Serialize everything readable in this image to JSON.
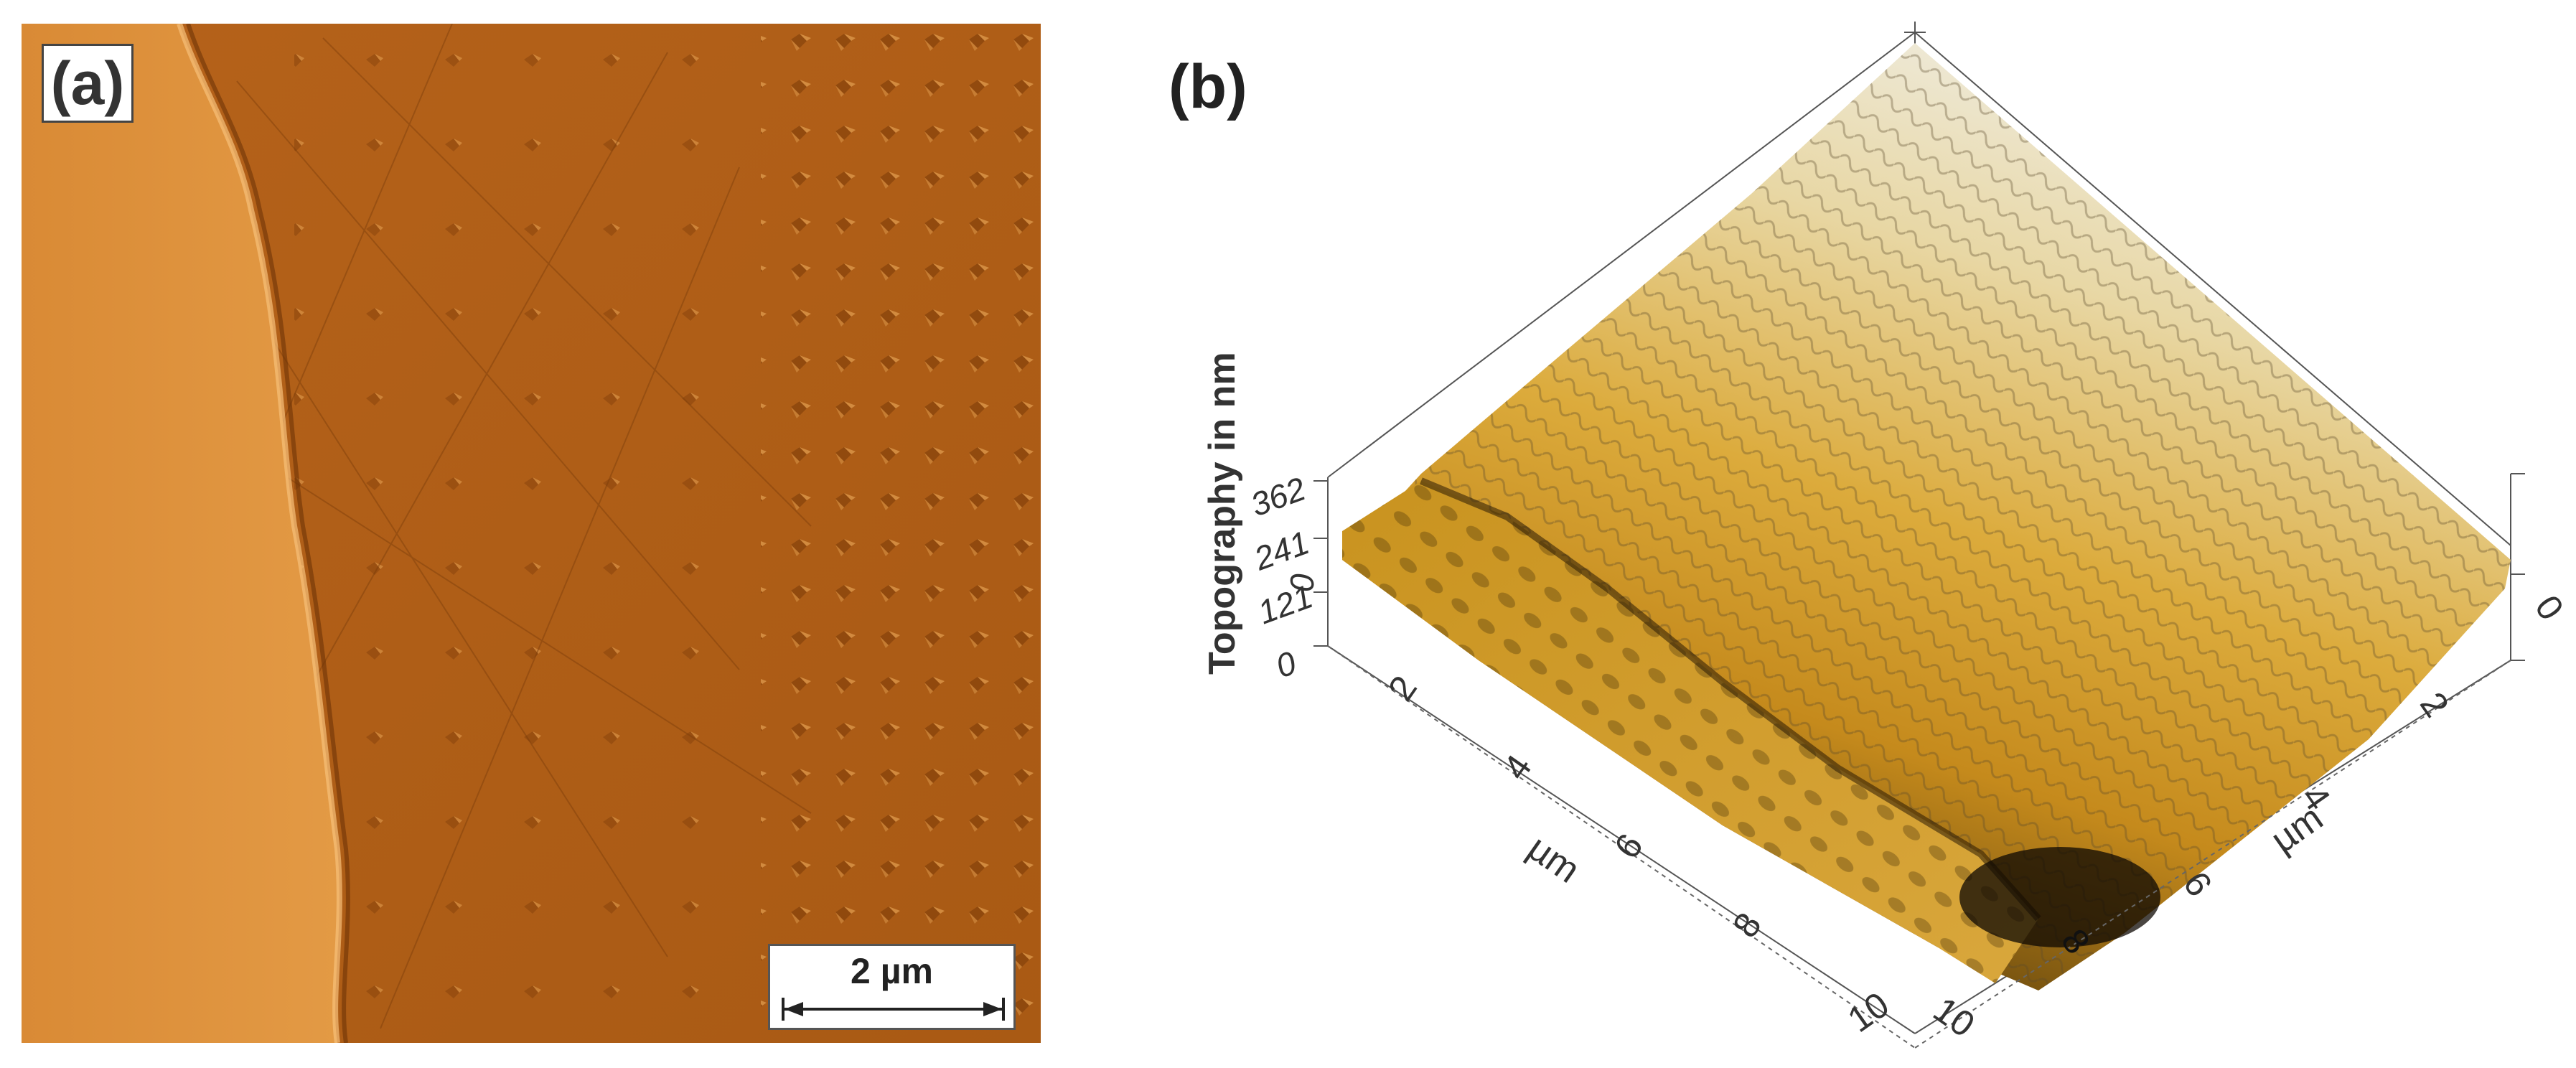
{
  "panel_a": {
    "label": "(a)",
    "scale_bar_label": "2 µm"
  },
  "panel_b": {
    "label": "(b)",
    "z_axis_title": "Topography in nm",
    "z_ticks": [
      "362",
      "241",
      "121",
      "0"
    ],
    "left_axis_unit": "µm",
    "left_axis_ticks": [
      "2",
      "4",
      "6",
      "8",
      "10"
    ],
    "right_axis_unit": "µm",
    "right_axis_ticks": [
      "0",
      "2",
      "4",
      "6",
      "10"
    ],
    "extra_zero_tick": "0",
    "hidden_tick": "8"
  },
  "colors": {
    "afm_dark": "#a8570f",
    "afm_light": "#e09640",
    "topo_high": "#e6e2d6",
    "topo_mid": "#d9a531",
    "topo_low": "#1a1208",
    "axis": "#555555"
  }
}
